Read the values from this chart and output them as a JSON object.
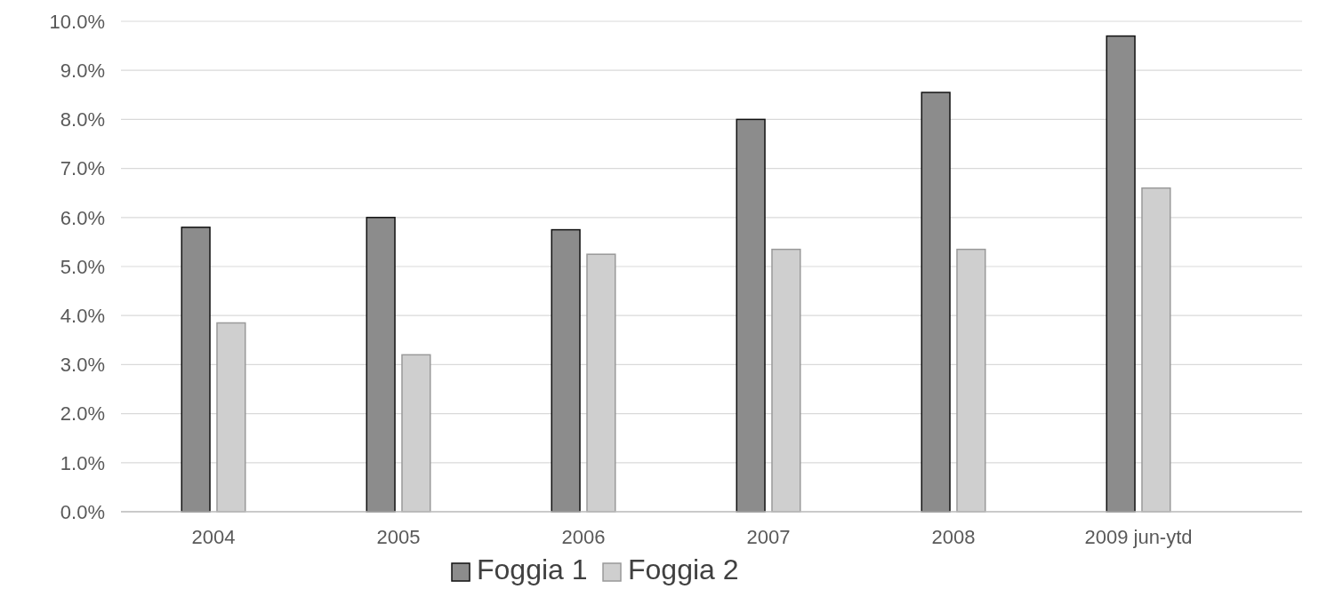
{
  "chart_data": {
    "type": "bar",
    "categories": [
      "2004",
      "2005",
      "2006",
      "2007",
      "2008",
      "2009 jun-ytd"
    ],
    "series": [
      {
        "name": "Foggia 1",
        "color": "#8c8c8c",
        "values": [
          5.8,
          6.0,
          5.75,
          8.0,
          8.55,
          9.7
        ]
      },
      {
        "name": "Foggia 2",
        "color": "#cfcfcf",
        "values": [
          3.85,
          3.2,
          5.25,
          5.35,
          5.35,
          6.6
        ]
      }
    ],
    "ylim": [
      0,
      10
    ],
    "yticks": [
      {
        "value": 0,
        "label": "0.0%"
      },
      {
        "value": 1,
        "label": "1.0%"
      },
      {
        "value": 2,
        "label": "2.0%"
      },
      {
        "value": 3,
        "label": "3.0%"
      },
      {
        "value": 4,
        "label": "4.0%"
      },
      {
        "value": 5,
        "label": "5.0%"
      },
      {
        "value": 6,
        "label": "6.0%"
      },
      {
        "value": 7,
        "label": "7.0%"
      },
      {
        "value": 8,
        "label": "8.0%"
      },
      {
        "value": 9,
        "label": "9.0%"
      },
      {
        "value": 10,
        "label": "10.0%"
      }
    ],
    "grid": "y",
    "legend": "bottom"
  }
}
